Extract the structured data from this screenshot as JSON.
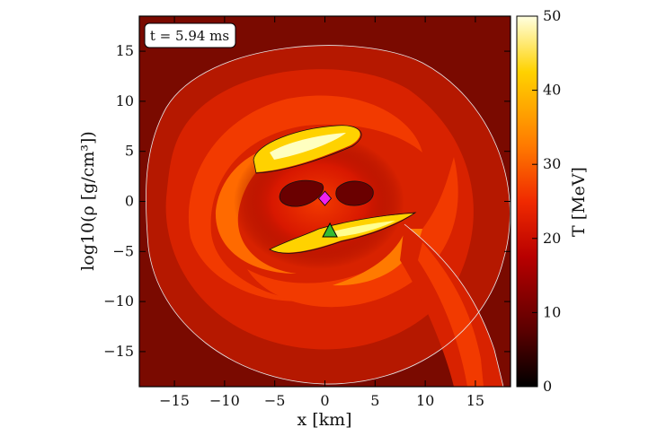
{
  "chart_data": {
    "type": "heatmap",
    "time_label": "t = 5.94 ms",
    "xlabel": "x [km]",
    "ylabel": "log10(ρ [g/cm³])",
    "colorbar_label": "T [MeV]",
    "xlim": [
      -18.5,
      18.5
    ],
    "ylim": [
      -18.5,
      18.5
    ],
    "xticks": [
      -15,
      -10,
      -5,
      0,
      5,
      10,
      15
    ],
    "yticks": [
      -15,
      -10,
      -5,
      0,
      5,
      10,
      15
    ],
    "colorbar_range": [
      0,
      50
    ],
    "colorbar_ticks": [
      0,
      10,
      20,
      30,
      40,
      50
    ],
    "colormap": [
      "#000000",
      "#5a0000",
      "#b80000",
      "#f02a00",
      "#ff7a00",
      "#ffd200",
      "#ffffe0"
    ],
    "markers": [
      {
        "name": "magenta-diamond",
        "x": 0.0,
        "y": 0.3,
        "color": "#ee22ee"
      },
      {
        "name": "green-triangle",
        "x": 0.5,
        "y": -3.0,
        "color": "#33bb33"
      }
    ]
  }
}
